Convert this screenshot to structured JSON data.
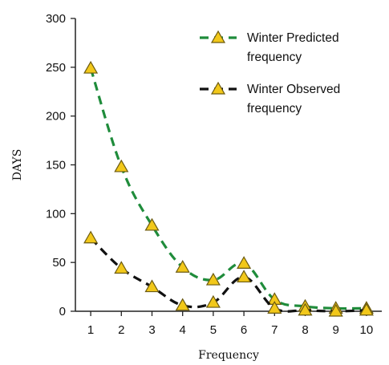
{
  "chart_data": {
    "type": "line",
    "xlabel": "Frequency",
    "ylabel": "DAYS",
    "x": [
      1,
      2,
      3,
      4,
      5,
      6,
      7,
      8,
      9,
      10
    ],
    "ylim": [
      0,
      300
    ],
    "yticks": [
      0,
      50,
      100,
      150,
      200,
      250,
      300
    ],
    "grid": false,
    "legend_position": "top-right",
    "series": [
      {
        "name": "Winter Predicted frequency",
        "legend_lines": [
          "Winter Predicted",
          "frequency"
        ],
        "values": [
          249,
          148,
          88,
          45,
          32,
          49,
          12,
          5,
          3,
          3
        ],
        "line_color": "#1f8c3b",
        "line_style": "dashed",
        "marker": "triangle",
        "marker_fill": "#f2c81a"
      },
      {
        "name": "Winter Observed frequency",
        "legend_lines": [
          "Winter Observed",
          "frequency"
        ],
        "values": [
          75,
          44,
          25,
          6,
          9,
          35,
          3,
          1,
          0,
          1
        ],
        "line_color": "#111111",
        "line_style": "dashed",
        "marker": "triangle",
        "marker_fill": "#f2c81a"
      }
    ]
  }
}
